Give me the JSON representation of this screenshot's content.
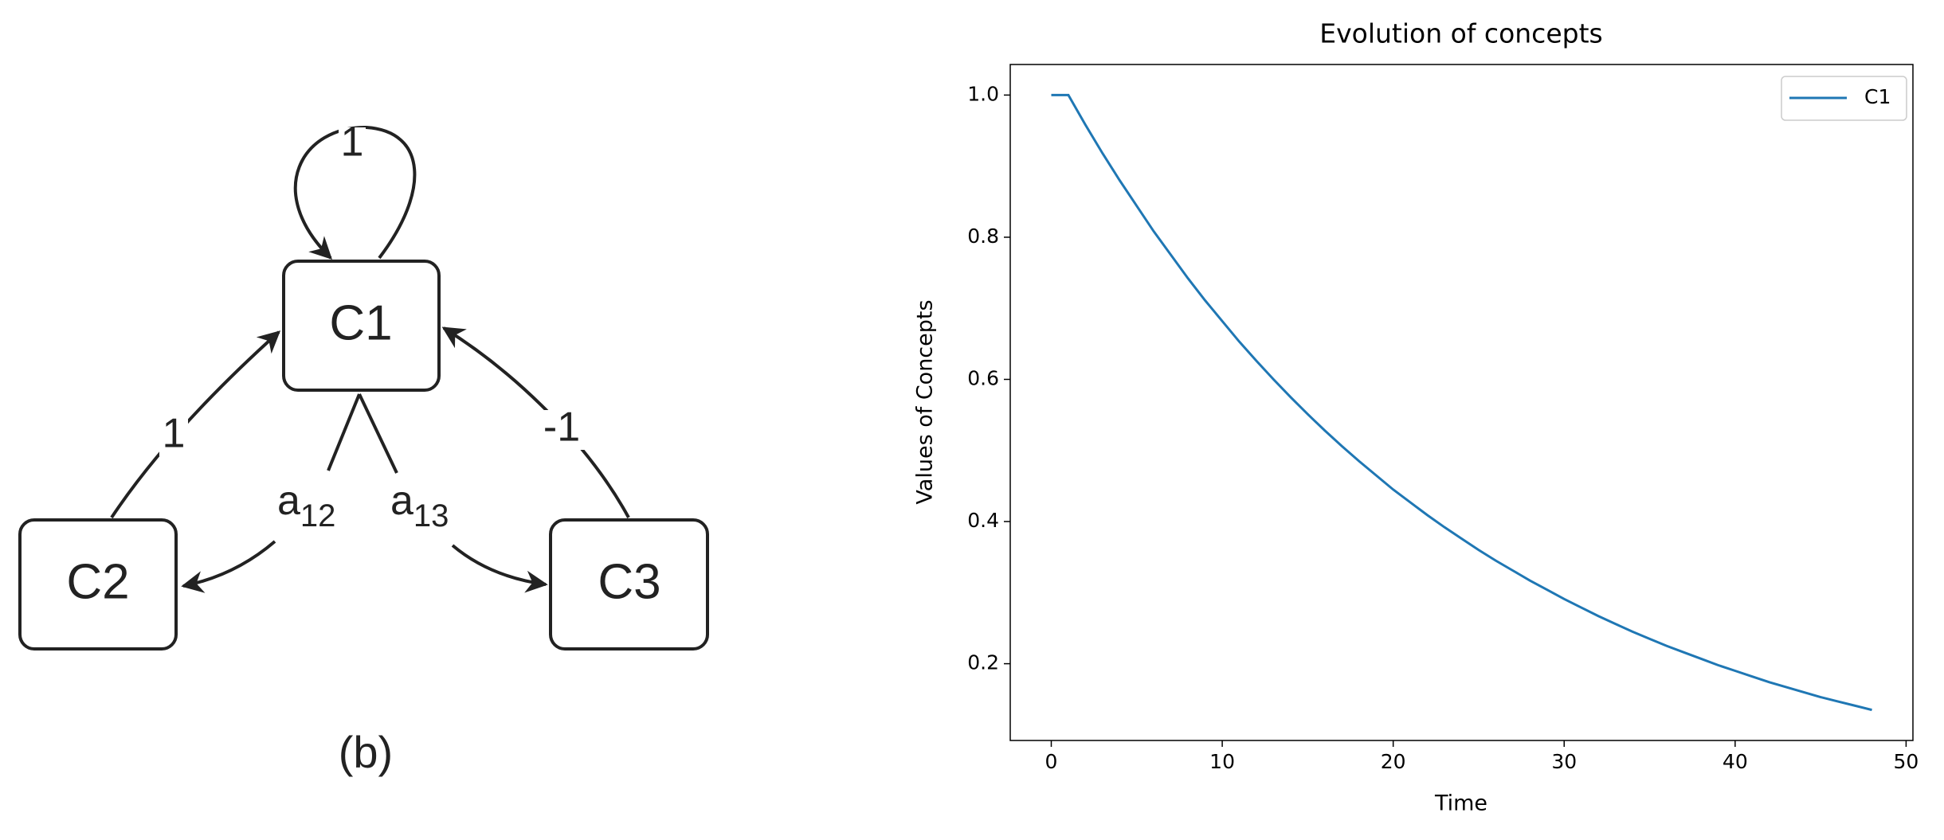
{
  "diagram": {
    "nodes": [
      {
        "label": "C1"
      },
      {
        "label": "C2"
      },
      {
        "label": "C3"
      }
    ],
    "edges": [
      {
        "label": "1"
      },
      {
        "label": "1"
      },
      {
        "label": "-1"
      },
      {
        "label": {
          "base": "a",
          "sub": "12"
        }
      },
      {
        "label": {
          "base": "a",
          "sub": "13"
        }
      }
    ],
    "caption": "(b)"
  },
  "chart_data": {
    "type": "line",
    "title": "Evolution of concepts",
    "xlabel": "Time",
    "ylabel": "Values of Concepts",
    "x": [
      0,
      1,
      2,
      3,
      4,
      5,
      6,
      7,
      8,
      9,
      10,
      11,
      12,
      13,
      14,
      15,
      16,
      17,
      18,
      19,
      20,
      21,
      22,
      23,
      24,
      25,
      26,
      27,
      28,
      29,
      30,
      31,
      32,
      33,
      34,
      35,
      36,
      37,
      38,
      39,
      40,
      41,
      42,
      43,
      44,
      45,
      46,
      47,
      48
    ],
    "series": [
      {
        "name": "C1",
        "color": "#1f77b4",
        "values": [
          1.0,
          1.0,
          0.958,
          0.918,
          0.88,
          0.844,
          0.808,
          0.775,
          0.742,
          0.711,
          0.682,
          0.653,
          0.626,
          0.6,
          0.575,
          0.551,
          0.528,
          0.506,
          0.485,
          0.465,
          0.445,
          0.427,
          0.409,
          0.392,
          0.376,
          0.36,
          0.345,
          0.331,
          0.317,
          0.304,
          0.291,
          0.279,
          0.267,
          0.256,
          0.245,
          0.235,
          0.225,
          0.216,
          0.207,
          0.198,
          0.19,
          0.182,
          0.174,
          0.167,
          0.16,
          0.153,
          0.147,
          0.141,
          0.135
        ]
      }
    ],
    "xlim": [
      -2.4,
      50.4
    ],
    "ylim": [
      0.092,
      1.043
    ],
    "xticks": [
      0,
      10,
      20,
      30,
      40,
      50
    ],
    "yticks": [
      0.2,
      0.4,
      0.6,
      0.8,
      {
        "value": 1,
        "label": "1.0"
      }
    ],
    "grid": false,
    "legend": "upper right"
  }
}
